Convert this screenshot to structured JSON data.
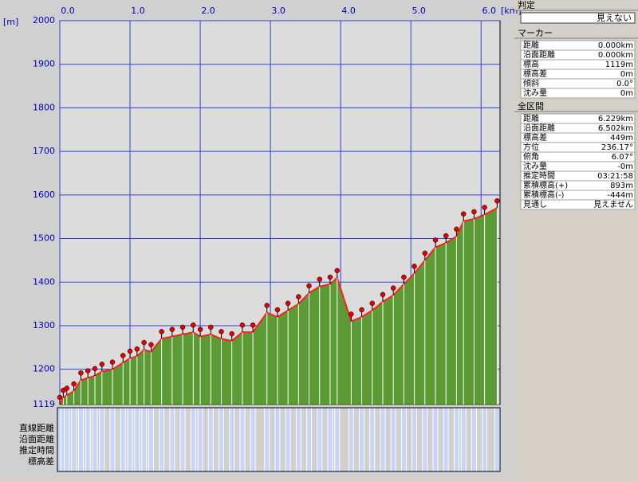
{
  "chart_data": {
    "type": "area",
    "x_unit": "[km]",
    "y_unit": "[m]",
    "x": [
      0,
      0.05,
      0.1,
      0.2,
      0.3,
      0.4,
      0.5,
      0.6,
      0.75,
      0.9,
      1.0,
      1.1,
      1.2,
      1.3,
      1.45,
      1.6,
      1.75,
      1.9,
      2.0,
      2.15,
      2.3,
      2.45,
      2.6,
      2.75,
      2.95,
      3.1,
      3.25,
      3.4,
      3.55,
      3.7,
      3.85,
      3.95,
      4.15,
      4.3,
      4.45,
      4.6,
      4.75,
      4.9,
      5.05,
      5.2,
      5.35,
      5.5,
      5.65,
      5.75,
      5.9,
      6.05,
      6.229
    ],
    "values": [
      1119,
      1135,
      1140,
      1150,
      1175,
      1180,
      1185,
      1195,
      1200,
      1215,
      1225,
      1230,
      1245,
      1240,
      1270,
      1275,
      1280,
      1285,
      1275,
      1280,
      1270,
      1265,
      1285,
      1285,
      1330,
      1320,
      1335,
      1350,
      1375,
      1390,
      1395,
      1410,
      1310,
      1320,
      1335,
      1355,
      1370,
      1395,
      1420,
      1450,
      1480,
      1490,
      1505,
      1540,
      1545,
      1555,
      1570
    ],
    "color": "#5c9a34",
    "line_color": "#ff2020",
    "marker_color": "#e00000",
    "xlim": [
      0,
      6.27
    ],
    "ylim": [
      1119,
      2000
    ],
    "xticks": [
      {
        "value": 0,
        "label": "0.0"
      },
      {
        "value": 1,
        "label": "1.0"
      },
      {
        "value": 2,
        "label": "2.0"
      },
      {
        "value": 3,
        "label": "3.0"
      },
      {
        "value": 4,
        "label": "4.0"
      },
      {
        "value": 5,
        "label": "5.0"
      },
      {
        "value": 6,
        "label": "6.0"
      }
    ],
    "yticks": [
      1119,
      1200,
      1300,
      1400,
      1500,
      1600,
      1700,
      1800,
      1900,
      2000
    ],
    "grid": true,
    "row_labels": [
      "直線距離",
      "沿面距離",
      "推定時間",
      "標高差"
    ]
  },
  "panel": {
    "judge": {
      "title": "判定",
      "value": "見えない"
    },
    "marker": {
      "title": "マーカー",
      "rows": [
        [
          "距離",
          "0.000km"
        ],
        [
          "沿面距離",
          "0.000km"
        ],
        [
          "標高",
          "1119m"
        ],
        [
          "標高差",
          "0m"
        ],
        [
          "傾斜",
          "0.0°"
        ],
        [
          "沈み量",
          "0m"
        ]
      ]
    },
    "total": {
      "title": "全区間",
      "rows": [
        [
          "距離",
          "6.229km"
        ],
        [
          "沿面距離",
          "6.502km"
        ],
        [
          "標高差",
          "449m"
        ],
        [
          "方位",
          "236.17°"
        ],
        [
          "俯角",
          "6.07°"
        ],
        [
          "沈み量",
          "-0m"
        ],
        [
          "推定時間",
          "03:21:58"
        ],
        [
          "累積標高(+)",
          "893m"
        ],
        [
          "累積標高(-)",
          "-444m"
        ],
        [
          "見通し",
          "見えません"
        ]
      ]
    }
  }
}
